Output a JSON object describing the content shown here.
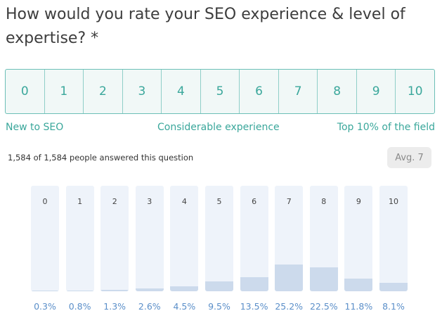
{
  "question": {
    "text": "How would you rate your SEO experience & level of expertise? *"
  },
  "scale": {
    "options": [
      "0",
      "1",
      "2",
      "3",
      "4",
      "5",
      "6",
      "7",
      "8",
      "9",
      "10"
    ],
    "anchors": {
      "low": "New to SEO",
      "mid": "Considerable experience",
      "high": "Top 10% of the field"
    }
  },
  "results": {
    "answered_text": "1,584 of 1,584 people answered this question",
    "average_label": "Avg. 7"
  },
  "chart_data": {
    "type": "bar",
    "categories": [
      "0",
      "1",
      "2",
      "3",
      "4",
      "5",
      "6",
      "7",
      "8",
      "9",
      "10"
    ],
    "values": [
      0.3,
      0.8,
      1.3,
      2.6,
      4.5,
      9.5,
      13.5,
      25.2,
      22.5,
      11.8,
      8.1
    ],
    "value_labels": [
      "0.3%",
      "0.8%",
      "1.3%",
      "2.6%",
      "4.5%",
      "9.5%",
      "13.5%",
      "25.2%",
      "22.5%",
      "11.8%",
      "8.1%"
    ],
    "ylim": [
      0,
      100
    ],
    "colors": {
      "track": "#eef3fa",
      "fill": "#ccdaec",
      "label": "#5b8fc9"
    }
  }
}
